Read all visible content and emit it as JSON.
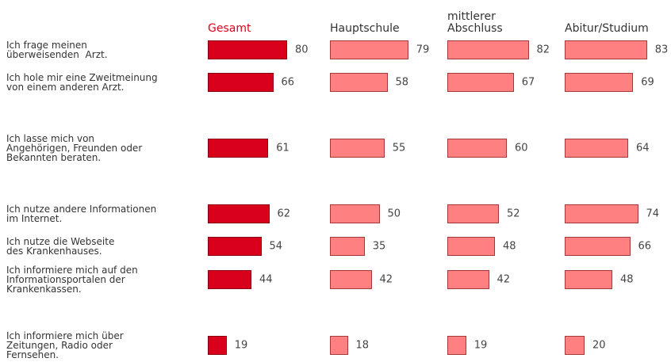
{
  "chart_data": {
    "type": "bar",
    "orientation": "horizontal",
    "categories": [
      "Ich frage meinen\nüberweisenden  Arzt.",
      "Ich hole mir eine Zweitmeinung\nvon einem anderen Arzt.",
      "Ich lasse mich von\nAngehörigen, Freunden oder\nBekannten beraten.",
      "Ich nutze andere Informationen\nim Internet.",
      "Ich nutze die Webseite\ndes Krankenhauses.",
      "Ich informiere mich auf den\nInformationsportalen der\nKrankenkassen.",
      "Ich informiere mich über\nZeitungen, Radio oder\nFernsehen."
    ],
    "series": [
      {
        "name": "Gesamt",
        "color": "#d9001b",
        "border": "#8b0010",
        "header_color": "#d9001b",
        "values": [
          80,
          66,
          61,
          62,
          54,
          44,
          19
        ]
      },
      {
        "name": "Hauptschule",
        "color": "#ff8080",
        "border": "#a33a3a",
        "header_color": "#333333",
        "values": [
          79,
          58,
          55,
          50,
          35,
          42,
          18
        ]
      },
      {
        "name": "mittlerer\nAbschluss",
        "color": "#ff8080",
        "border": "#a33a3a",
        "header_color": "#333333",
        "values": [
          82,
          67,
          60,
          52,
          48,
          42,
          19
        ]
      },
      {
        "name": "Abitur/Studium",
        "color": "#ff8080",
        "border": "#a33a3a",
        "header_color": "#333333",
        "values": [
          83,
          69,
          64,
          74,
          66,
          48,
          20
        ]
      }
    ]
  }
}
